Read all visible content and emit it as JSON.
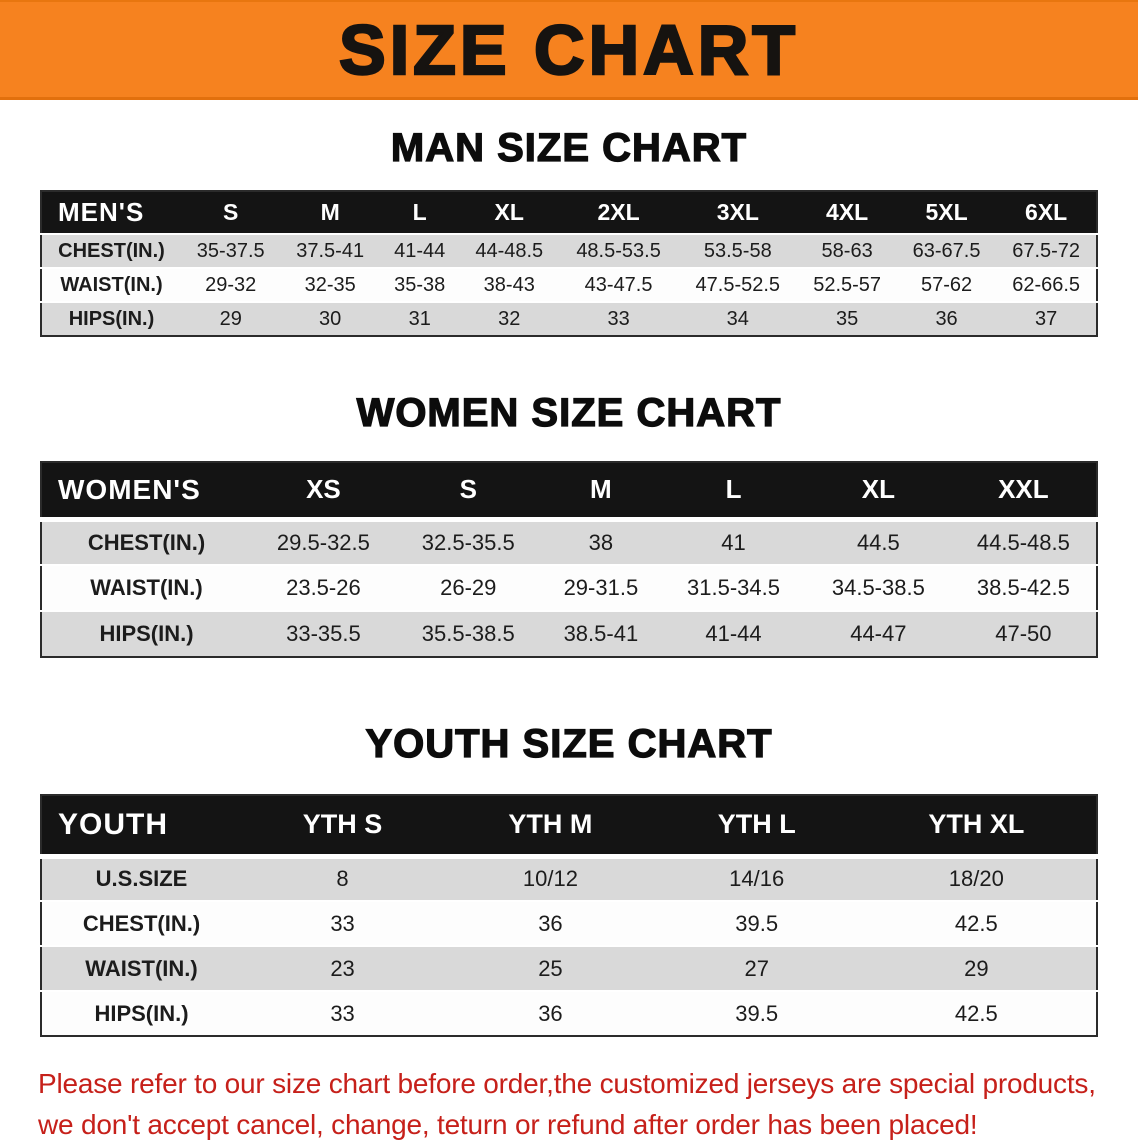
{
  "banner": {
    "title": "SIZE CHART"
  },
  "men": {
    "heading": "MAN SIZE CHART",
    "header": [
      "MEN'S",
      "S",
      "M",
      "L",
      "XL",
      "2XL",
      "3XL",
      "4XL",
      "5XL",
      "6XL"
    ],
    "rows": [
      [
        "CHEST(IN.)",
        "35-37.5",
        "37.5-41",
        "41-44",
        "44-48.5",
        "48.5-53.5",
        "53.5-58",
        "58-63",
        "63-67.5",
        "67.5-72"
      ],
      [
        "WAIST(IN.)",
        "29-32",
        "32-35",
        "35-38",
        "38-43",
        "43-47.5",
        "47.5-52.5",
        "52.5-57",
        "57-62",
        "62-66.5"
      ],
      [
        "HIPS(IN.)",
        "29",
        "30",
        "31",
        "32",
        "33",
        "34",
        "35",
        "36",
        "37"
      ]
    ]
  },
  "women": {
    "heading": "WOMEN SIZE CHART",
    "header": [
      "WOMEN'S",
      "XS",
      "S",
      "M",
      "L",
      "XL",
      "XXL"
    ],
    "rows": [
      [
        "CHEST(IN.)",
        "29.5-32.5",
        "32.5-35.5",
        "38",
        "41",
        "44.5",
        "44.5-48.5"
      ],
      [
        "WAIST(IN.)",
        "23.5-26",
        "26-29",
        "29-31.5",
        "31.5-34.5",
        "34.5-38.5",
        "38.5-42.5"
      ],
      [
        "HIPS(IN.)",
        "33-35.5",
        "35.5-38.5",
        "38.5-41",
        "41-44",
        "44-47",
        "47-50"
      ]
    ]
  },
  "youth": {
    "heading": "YOUTH SIZE CHART",
    "header": [
      "YOUTH",
      "YTH S",
      "YTH M",
      "YTH L",
      "YTH XL"
    ],
    "rows": [
      [
        "U.S.SIZE",
        "8",
        "10/12",
        "14/16",
        "18/20"
      ],
      [
        "CHEST(IN.)",
        "33",
        "36",
        "39.5",
        "42.5"
      ],
      [
        "WAIST(IN.)",
        "23",
        "25",
        "27",
        "29"
      ],
      [
        "HIPS(IN.)",
        "33",
        "36",
        "39.5",
        "42.5"
      ]
    ]
  },
  "disclaimer": {
    "line1": "Please refer to our size chart before order,the customized jerseys are special products,",
    "line2": "we don't accept cancel, change, teturn or refund after order has been placed!"
  },
  "colors": {
    "banner_bg": "#f6821f",
    "table_header_bg": "#141414",
    "row_gray": "#d9d9d9",
    "disclaimer_red": "#c6201a"
  }
}
